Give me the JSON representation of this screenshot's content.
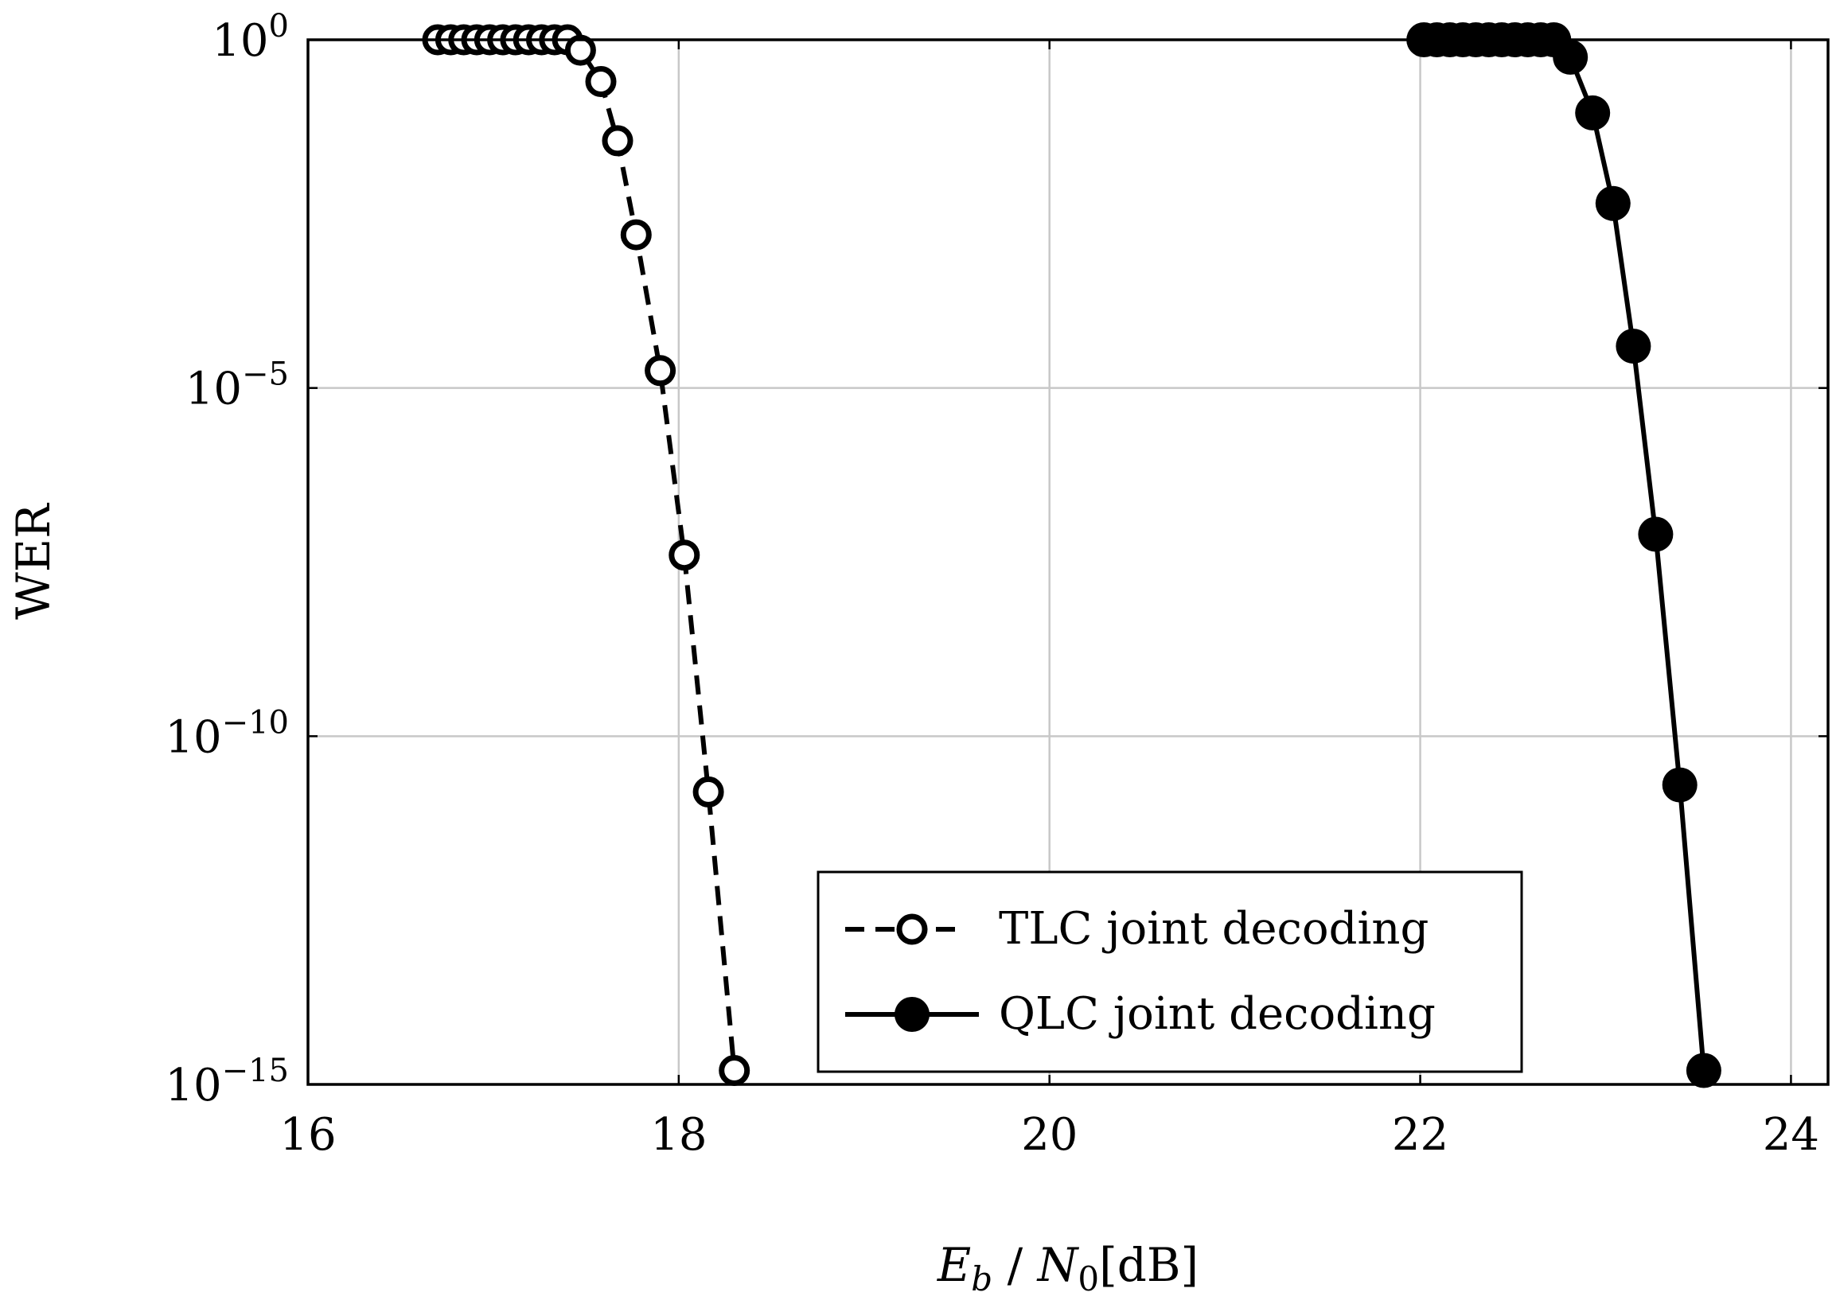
{
  "chart_data": {
    "type": "line",
    "title": "",
    "xlabel": {
      "main": "E",
      "sub": "b",
      "slash": " / ",
      "main2": "N",
      "sub2": "0",
      "unit": "[dB]"
    },
    "ylabel": "WER",
    "yscale": "log",
    "xlim": [
      16,
      24.2
    ],
    "ylim_exponents": [
      -15,
      0
    ],
    "grid": true,
    "x_ticks": [
      {
        "value": 16,
        "label": "16"
      },
      {
        "value": 18,
        "label": "18"
      },
      {
        "value": 20,
        "label": "20"
      },
      {
        "value": 22,
        "label": "22"
      },
      {
        "value": 24,
        "label": "24"
      }
    ],
    "y_ticks": [
      {
        "exponent": 0,
        "base": "10",
        "sup": "0"
      },
      {
        "exponent": -5,
        "base": "10",
        "sup": "−5"
      },
      {
        "exponent": -10,
        "base": "10",
        "sup": "−10"
      },
      {
        "exponent": -15,
        "base": "10",
        "sup": "−15"
      }
    ],
    "legend_position": "bottom-right",
    "series": [
      {
        "name": "TLC joint decoding",
        "style": "dashed",
        "marker": "open-circle",
        "x": [
          16.7,
          16.77,
          16.84,
          16.91,
          16.98,
          17.05,
          17.12,
          17.19,
          17.26,
          17.33,
          17.4,
          17.47,
          17.58,
          17.67,
          17.77,
          17.9,
          18.03,
          18.16,
          18.3
        ],
        "log10_wer": [
          0,
          0,
          0,
          0,
          0,
          0,
          0,
          0,
          0,
          0,
          0,
          -0.15,
          -0.6,
          -1.45,
          -2.8,
          -4.75,
          -7.4,
          -10.8,
          -14.8
        ]
      },
      {
        "name": "QLC joint decoding",
        "style": "solid",
        "marker": "filled-circle",
        "x": [
          22.02,
          22.09,
          22.16,
          22.23,
          22.3,
          22.37,
          22.44,
          22.51,
          22.58,
          22.65,
          22.72,
          22.81,
          22.93,
          23.04,
          23.15,
          23.27,
          23.4,
          23.53
        ],
        "log10_wer": [
          0,
          0,
          0,
          0,
          0,
          0,
          0,
          0,
          0,
          0,
          0,
          -0.25,
          -1.05,
          -2.35,
          -4.4,
          -7.1,
          -10.7,
          -14.8
        ]
      }
    ]
  }
}
